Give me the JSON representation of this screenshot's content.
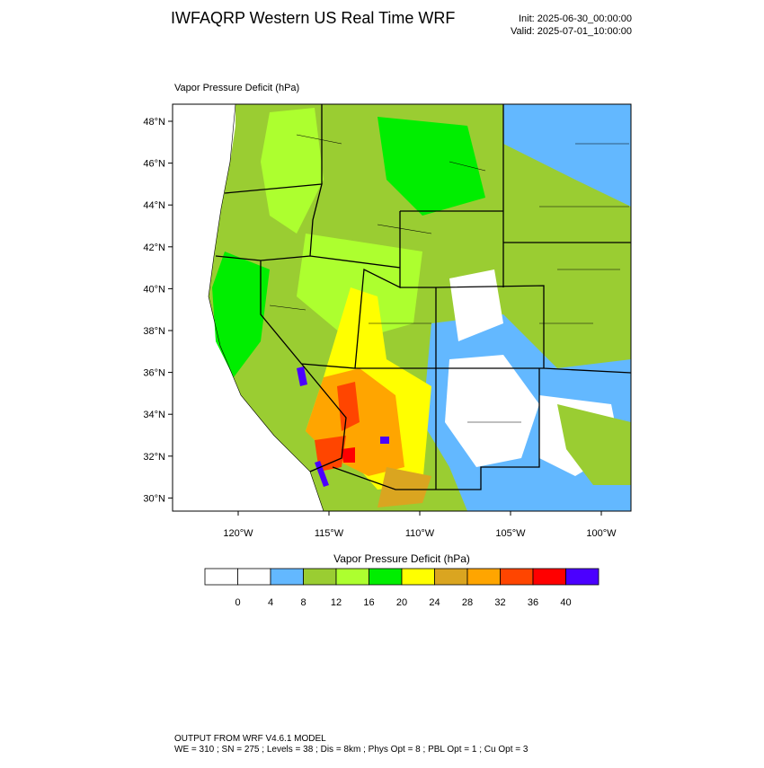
{
  "header": {
    "title": "IWFAQRP Western US Real Time WRF",
    "init": "Init: 2025-06-30_00:00:00",
    "valid": "Valid: 2025-07-01_10:00:00"
  },
  "map": {
    "field_label": "Vapor Pressure Deficit   (hPa)",
    "lat_labels": [
      "48°N",
      "46°N",
      "44°N",
      "42°N",
      "40°N",
      "38°N",
      "36°N",
      "34°N",
      "32°N",
      "30°N"
    ],
    "lon_labels": [
      "120°W",
      "115°W",
      "110°W",
      "105°W",
      "100°W"
    ]
  },
  "colorbar": {
    "title": "Vapor Pressure Deficit  (hPa)",
    "levels": [
      0,
      4,
      8,
      12,
      16,
      20,
      24,
      28,
      32,
      36,
      40
    ],
    "colors": [
      "#ffffff",
      "#ffffff",
      "#63b8ff",
      "#9acd32",
      "#adff2f",
      "#00ee00",
      "#ffff00",
      "#daa520",
      "#ffa500",
      "#ff4500",
      "#ff0000",
      "#4b00ff"
    ]
  },
  "footer": {
    "line1": "OUTPUT FROM WRF V4.6.1 MODEL",
    "line2": "WE = 310 ; SN = 275 ; Levels = 38 ; Dis = 8km ; Phys Opt = 8 ; PBL Opt = 1 ; Cu Opt = 3"
  }
}
